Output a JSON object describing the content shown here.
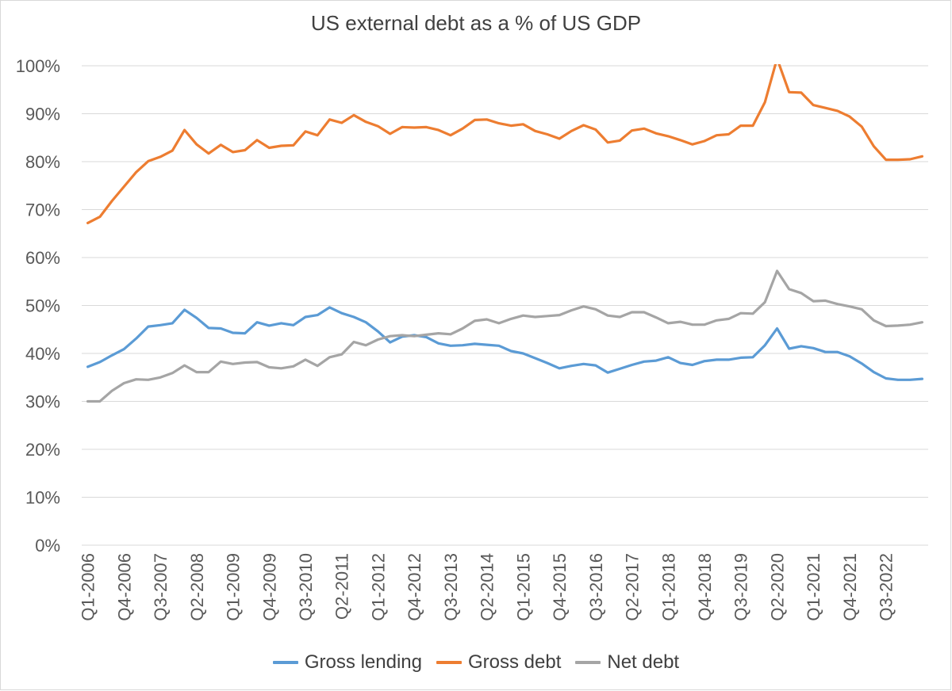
{
  "chart_data": {
    "type": "line",
    "title": "US external debt as a % of US GDP",
    "xlabel": "",
    "ylabel": "",
    "ylim": [
      0,
      100
    ],
    "yticks": [
      "0%",
      "10%",
      "20%",
      "30%",
      "40%",
      "50%",
      "60%",
      "70%",
      "80%",
      "90%",
      "100%"
    ],
    "grid": true,
    "legend_position": "bottom",
    "x": [
      "Q1-2006",
      "Q2-2006",
      "Q3-2006",
      "Q4-2006",
      "Q1-2007",
      "Q2-2007",
      "Q3-2007",
      "Q4-2007",
      "Q1-2008",
      "Q2-2008",
      "Q3-2008",
      "Q4-2008",
      "Q1-2009",
      "Q2-2009",
      "Q3-2009",
      "Q4-2009",
      "Q1-2010",
      "Q2-2010",
      "Q3-2010",
      "Q4-2010",
      "Q1-2011",
      "Q2-2011",
      "Q3-2011",
      "Q4-2011",
      "Q1-2012",
      "Q2-2012",
      "Q3-2012",
      "Q4-2012",
      "Q1-2013",
      "Q2-2013",
      "Q3-2013",
      "Q4-2013",
      "Q1-2014",
      "Q2-2014",
      "Q3-2014",
      "Q4-2014",
      "Q1-2015",
      "Q2-2015",
      "Q3-2015",
      "Q4-2015",
      "Q1-2016",
      "Q2-2016",
      "Q3-2016",
      "Q4-2016",
      "Q1-2017",
      "Q2-2017",
      "Q3-2017",
      "Q4-2017",
      "Q1-2018",
      "Q2-2018",
      "Q3-2018",
      "Q4-2018",
      "Q1-2019",
      "Q2-2019",
      "Q3-2019",
      "Q4-2019",
      "Q1-2020",
      "Q2-2020",
      "Q3-2020",
      "Q4-2020",
      "Q1-2021",
      "Q2-2021",
      "Q3-2021",
      "Q4-2021",
      "Q1-2022",
      "Q2-2022",
      "Q3-2022",
      "Q4-2022",
      "Q1-2023",
      "Q2-2023"
    ],
    "xtick_labels": [
      "Q1-2006",
      "Q4-2006",
      "Q3-2007",
      "Q2-2008",
      "Q1-2009",
      "Q4-2009",
      "Q3-2010",
      "Q2-2011",
      "Q1-2012",
      "Q4-2012",
      "Q3-2013",
      "Q2-2014",
      "Q1-2015",
      "Q4-2015",
      "Q3-2016",
      "Q2-2017",
      "Q1-2018",
      "Q4-2018",
      "Q3-2019",
      "Q2-2020",
      "Q1-2021",
      "Q4-2021",
      "Q3-2022"
    ],
    "series": [
      {
        "name": "Gross lending",
        "color": "#5b9bd5",
        "values": [
          37.2,
          38.2,
          39.6,
          40.9,
          43.1,
          45.6,
          45.9,
          46.3,
          49.1,
          47.4,
          45.3,
          45.2,
          44.3,
          44.2,
          46.5,
          45.8,
          46.3,
          45.9,
          47.6,
          48.0,
          49.6,
          48.4,
          47.6,
          46.5,
          44.6,
          42.3,
          43.5,
          43.8,
          43.4,
          42.1,
          41.6,
          41.7,
          42.0,
          41.8,
          41.6,
          40.5,
          40.0,
          39.0,
          38.0,
          36.9,
          37.4,
          37.8,
          37.5,
          36.0,
          36.8,
          37.6,
          38.3,
          38.5,
          39.2,
          38.0,
          37.6,
          38.4,
          38.7,
          38.7,
          39.1,
          39.2,
          41.7,
          45.2,
          41.0,
          41.5,
          41.1,
          40.3,
          40.3,
          39.4,
          37.9,
          36.1,
          34.8,
          34.5,
          34.5,
          34.7
        ]
      },
      {
        "name": "Gross debt",
        "color": "#ed7d31",
        "values": [
          67.2,
          68.5,
          71.8,
          74.8,
          77.8,
          80.1,
          81.0,
          82.3,
          86.6,
          83.6,
          81.7,
          83.5,
          82.0,
          82.4,
          84.5,
          82.9,
          83.3,
          83.4,
          86.3,
          85.5,
          88.8,
          88.1,
          89.7,
          88.3,
          87.4,
          85.8,
          87.2,
          87.1,
          87.2,
          86.6,
          85.5,
          86.9,
          88.7,
          88.8,
          88.0,
          87.5,
          87.8,
          86.4,
          85.7,
          84.8,
          86.4,
          87.6,
          86.7,
          84.0,
          84.4,
          86.5,
          86.9,
          85.9,
          85.3,
          84.5,
          83.6,
          84.3,
          85.5,
          85.7,
          87.5,
          87.5,
          92.4,
          101.5,
          94.5,
          94.4,
          91.8,
          91.2,
          90.6,
          89.4,
          87.3,
          83.2,
          80.4,
          80.4,
          80.5,
          81.1
        ]
      },
      {
        "name": "Net debt",
        "color": "#a5a5a5",
        "values": [
          30.0,
          30.0,
          32.2,
          33.8,
          34.6,
          34.5,
          35.0,
          35.9,
          37.5,
          36.1,
          36.1,
          38.3,
          37.8,
          38.1,
          38.2,
          37.1,
          36.9,
          37.3,
          38.7,
          37.4,
          39.2,
          39.8,
          42.4,
          41.7,
          42.9,
          43.6,
          43.8,
          43.6,
          43.9,
          44.2,
          44.0,
          45.2,
          46.8,
          47.1,
          46.3,
          47.2,
          47.9,
          47.6,
          47.8,
          48.0,
          49.0,
          49.8,
          49.2,
          47.9,
          47.6,
          48.6,
          48.6,
          47.5,
          46.3,
          46.6,
          46.0,
          46.0,
          46.9,
          47.2,
          48.4,
          48.3,
          50.7,
          57.2,
          53.4,
          52.6,
          50.9,
          51.0,
          50.3,
          49.8,
          49.2,
          46.9,
          45.7,
          45.8,
          46.0,
          46.5
        ]
      }
    ]
  }
}
